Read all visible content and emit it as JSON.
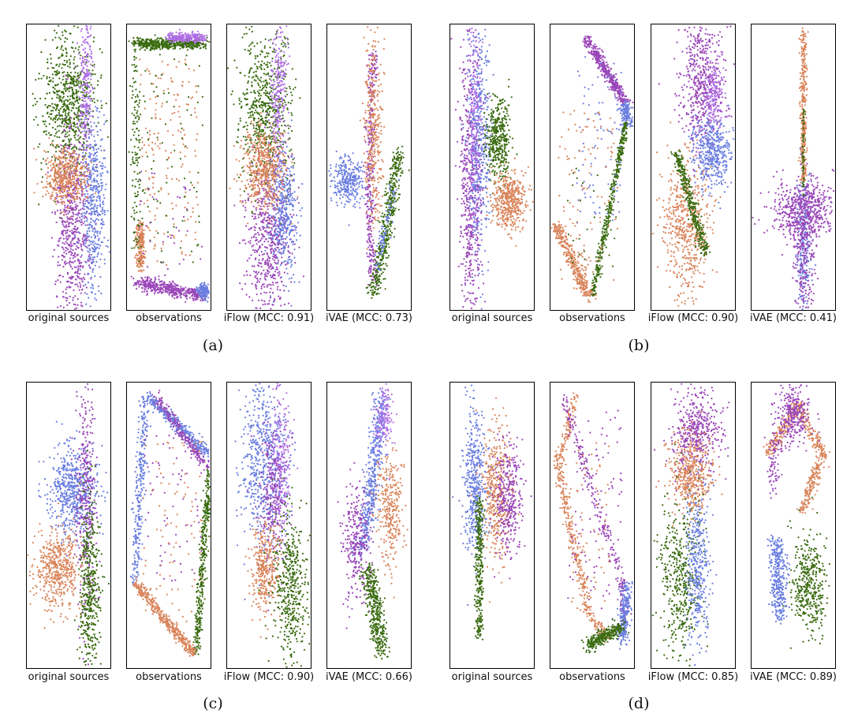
{
  "figure": {
    "group_labels": [
      "(a)",
      "(b)",
      "(c)",
      "(d)"
    ],
    "panel_labels": [
      "original sources",
      "observations",
      "iFlow (MCC: 0.91)",
      "iVAE (MCC: 0.73)",
      "original sources",
      "observations",
      "iFlow (MCC: 0.90)",
      "iVAE (MCC: 0.41)",
      "original sources",
      "observations",
      "iFlow (MCC: 0.90)",
      "iVAE (MCC: 0.66)",
      "original sources",
      "observations",
      "iFlow (MCC: 0.85)",
      "iVAE (MCC: 0.89)"
    ]
  },
  "colors": {
    "green": "#3a6b10",
    "orange": "#d9845a",
    "purple": "#9a46b8",
    "blue": "#6a7ee0",
    "violet": "#b06ee6"
  },
  "chart_data": [
    {
      "group": "(a)",
      "panel": "original sources",
      "type": "scatter",
      "axes": "none",
      "clusters": [
        {
          "color": "green",
          "center": [
            0.5,
            0.7
          ],
          "spread": [
            0.22,
            0.14
          ]
        },
        {
          "color": "orange",
          "center": [
            0.46,
            0.46
          ],
          "spread": [
            0.12,
            0.07
          ]
        },
        {
          "color": "purple",
          "center": [
            0.6,
            0.27
          ],
          "spread": [
            0.1,
            0.2
          ]
        },
        {
          "color": "blue",
          "center": [
            0.8,
            0.38
          ],
          "spread": [
            0.07,
            0.16
          ]
        },
        {
          "color": "violet",
          "center": [
            0.68,
            0.8
          ],
          "spread": [
            0.05,
            0.14
          ]
        }
      ]
    },
    {
      "group": "(a)",
      "panel": "observations",
      "type": "scatter",
      "axes": "none",
      "shape": "rectangle-ring"
    },
    {
      "group": "(a)",
      "panel": "iFlow (MCC: 0.91)",
      "type": "scatter",
      "axes": "none"
    },
    {
      "group": "(a)",
      "panel": "iVAE (MCC: 0.73)",
      "type": "scatter",
      "axes": "none"
    },
    {
      "group": "(b)",
      "panel": "original sources",
      "type": "scatter",
      "axes": "none"
    },
    {
      "group": "(b)",
      "panel": "observations",
      "type": "scatter",
      "axes": "none"
    },
    {
      "group": "(b)",
      "panel": "iFlow (MCC: 0.90)",
      "type": "scatter",
      "axes": "none"
    },
    {
      "group": "(b)",
      "panel": "iVAE (MCC: 0.41)",
      "type": "scatter",
      "axes": "none"
    },
    {
      "group": "(c)",
      "panel": "original sources",
      "type": "scatter",
      "axes": "none"
    },
    {
      "group": "(c)",
      "panel": "observations",
      "type": "scatter",
      "axes": "none"
    },
    {
      "group": "(c)",
      "panel": "iFlow (MCC: 0.90)",
      "type": "scatter",
      "axes": "none"
    },
    {
      "group": "(c)",
      "panel": "iVAE (MCC: 0.66)",
      "type": "scatter",
      "axes": "none"
    },
    {
      "group": "(d)",
      "panel": "original sources",
      "type": "scatter",
      "axes": "none"
    },
    {
      "group": "(d)",
      "panel": "observations",
      "type": "scatter",
      "axes": "none"
    },
    {
      "group": "(d)",
      "panel": "iFlow (MCC: 0.85)",
      "type": "scatter",
      "axes": "none"
    },
    {
      "group": "(d)",
      "panel": "iVAE (MCC: 0.89)",
      "type": "scatter",
      "axes": "none"
    }
  ]
}
